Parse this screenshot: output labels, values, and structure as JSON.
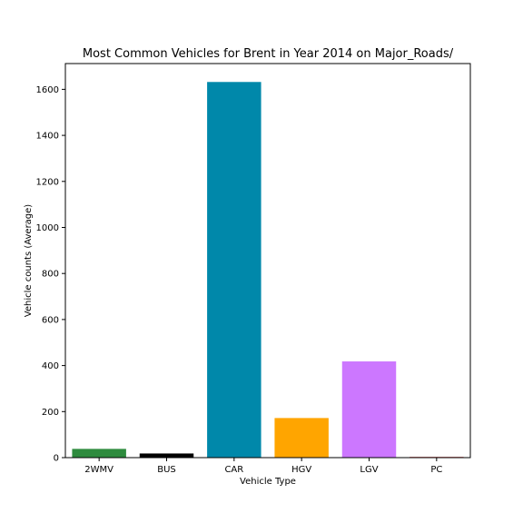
{
  "chart_data": {
    "type": "bar",
    "title": "Most Common Vehicles for Brent in Year 2014 on Major_Roads/",
    "xlabel": "Vehicle Type",
    "ylabel": "Vehicle counts (Average)",
    "categories": [
      "2WMV",
      "BUS",
      "CAR",
      "HGV",
      "LGV",
      "PC"
    ],
    "values": [
      38,
      18,
      1632,
      172,
      418,
      3
    ],
    "colors": [
      "#2e8b3e",
      "#000000",
      "#0088aa",
      "#ffa500",
      "#cc77ff",
      "#cc2222"
    ],
    "ylim": [
      0,
      1712
    ],
    "yticks": [
      0,
      200,
      400,
      600,
      800,
      1000,
      1200,
      1400,
      1600
    ],
    "grid": false,
    "legend": "none"
  }
}
